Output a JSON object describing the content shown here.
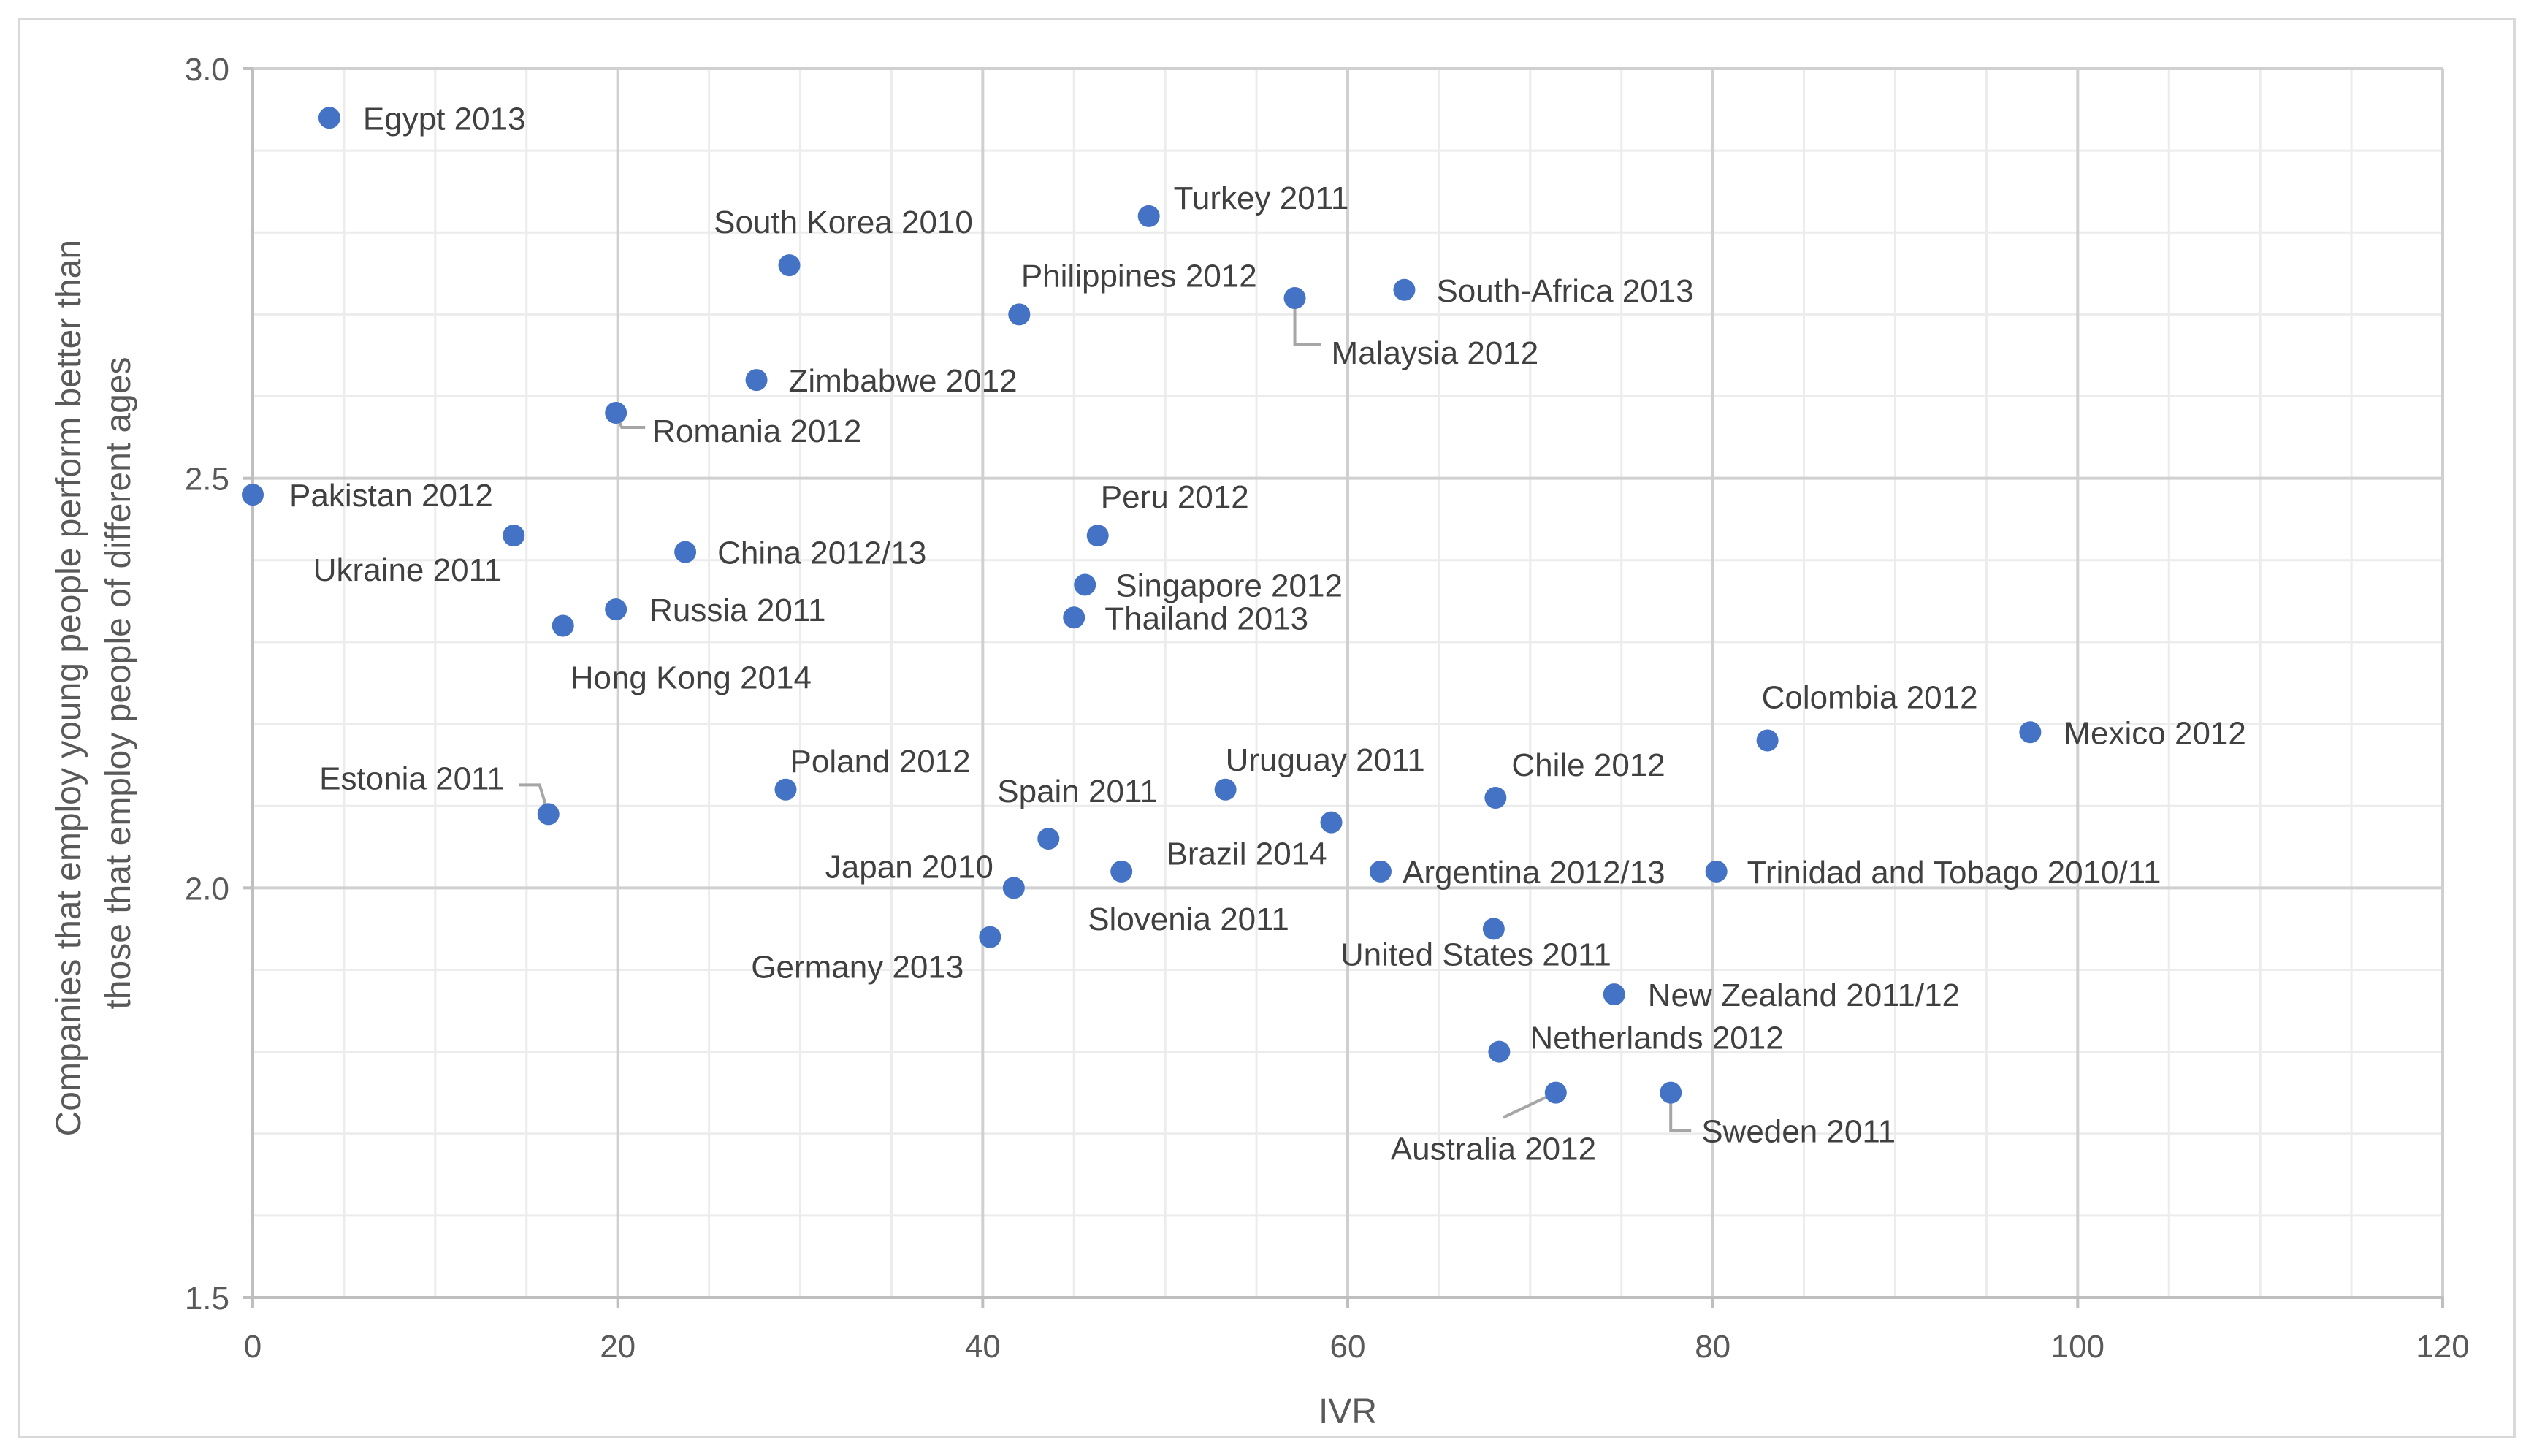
{
  "chart_data": {
    "type": "scatter",
    "title": "",
    "xlabel": "IVR",
    "ylabel": "Companies that employ young people perform better than those that employ people of different ages",
    "ylabel_lines": [
      "Companies that employ young people perform better than",
      "those that employ people of different ages"
    ],
    "xlim": [
      0,
      120
    ],
    "ylim": [
      1.5,
      3.0
    ],
    "x_ticks": [
      0,
      20,
      40,
      60,
      80,
      100,
      120
    ],
    "y_ticks": [
      1.5,
      2.0,
      2.5,
      3.0
    ],
    "y_tick_labels": [
      "1.5",
      "2.0",
      "2.5",
      "3.0"
    ],
    "grid": true,
    "marker_color": "#4472c4",
    "points": [
      {
        "label": "Egypt 2013",
        "x": 4.2,
        "y": 2.94
      },
      {
        "label": "Turkey 2011",
        "x": 49.1,
        "y": 2.82
      },
      {
        "label": "South Korea 2010",
        "x": 29.4,
        "y": 2.76
      },
      {
        "label": "Philippines 2012",
        "x": 42.0,
        "y": 2.7
      },
      {
        "label": "South-Africa 2013",
        "x": 63.1,
        "y": 2.73
      },
      {
        "label": "Malaysia 2012",
        "x": 57.1,
        "y": 2.72
      },
      {
        "label": "Zimbabwe 2012",
        "x": 27.6,
        "y": 2.62
      },
      {
        "label": "Romania 2012",
        "x": 19.9,
        "y": 2.58
      },
      {
        "label": "Pakistan 2012",
        "x": 0.0,
        "y": 2.48
      },
      {
        "label": "Ukraine 2011",
        "x": 14.3,
        "y": 2.43
      },
      {
        "label": "China 2012/13",
        "x": 23.7,
        "y": 2.41
      },
      {
        "label": "Peru 2012",
        "x": 46.3,
        "y": 2.43
      },
      {
        "label": "Singapore 2012",
        "x": 45.6,
        "y": 2.37
      },
      {
        "label": "Thailand 2013",
        "x": 45.0,
        "y": 2.33
      },
      {
        "label": "Russia 2011",
        "x": 19.9,
        "y": 2.34
      },
      {
        "label": "Hong Kong 2014",
        "x": 17.0,
        "y": 2.32
      },
      {
        "label": "Colombia 2012",
        "x": 83.0,
        "y": 2.18
      },
      {
        "label": "Mexico 2012",
        "x": 97.4,
        "y": 2.19
      },
      {
        "label": "Estonia 2011",
        "x": 16.2,
        "y": 2.09
      },
      {
        "label": "Poland 2012",
        "x": 29.2,
        "y": 2.12
      },
      {
        "label": "Uruguay 2011",
        "x": 53.3,
        "y": 2.12
      },
      {
        "label": "Chile 2012",
        "x": 68.1,
        "y": 2.11
      },
      {
        "label": "Spain 2011",
        "x": 43.6,
        "y": 2.06
      },
      {
        "label": "Brazil 2014",
        "x": 59.1,
        "y": 2.08
      },
      {
        "label": "Japan 2010",
        "x": 41.7,
        "y": 2.0
      },
      {
        "label": "Slovenia 2011",
        "x": 47.6,
        "y": 2.02
      },
      {
        "label": "Argentina 2012/13",
        "x": 61.8,
        "y": 2.02
      },
      {
        "label": "Trinidad and Tobago 2010/11",
        "x": 80.2,
        "y": 2.02
      },
      {
        "label": "Germany 2013",
        "x": 40.4,
        "y": 1.94
      },
      {
        "label": "United States 2011",
        "x": 68.0,
        "y": 1.95
      },
      {
        "label": "New Zealand 2011/12",
        "x": 74.6,
        "y": 1.87
      },
      {
        "label": "Netherlands 2012",
        "x": 68.3,
        "y": 1.8
      },
      {
        "label": "Australia 2012",
        "x": 71.4,
        "y": 1.75
      },
      {
        "label": "Sweden 2011",
        "x": 77.7,
        "y": 1.75
      }
    ]
  }
}
